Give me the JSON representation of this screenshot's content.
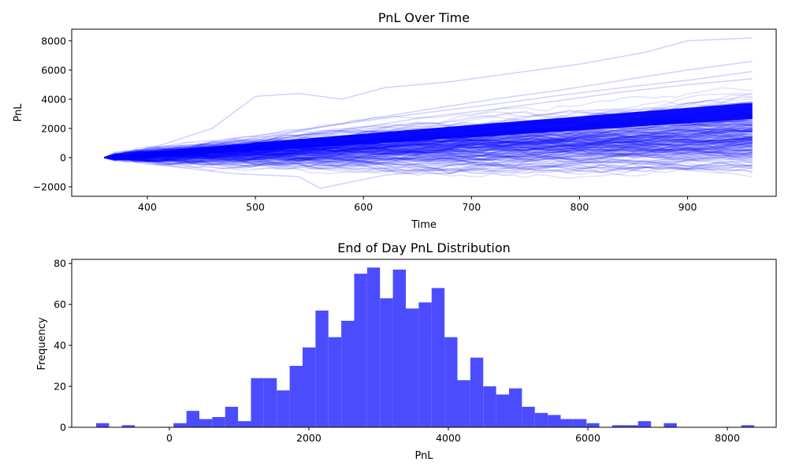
{
  "chart_data": [
    {
      "type": "line",
      "title": "PnL Over Time",
      "xlabel": "Time",
      "ylabel": "PnL",
      "xlim": [
        330,
        982
      ],
      "ylim": [
        -2650,
        8800
      ],
      "x_ticks": [
        400,
        500,
        600,
        700,
        800,
        900
      ],
      "y_ticks": [
        -2000,
        0,
        2000,
        4000,
        6000,
        8000
      ],
      "x_tick_labels": [
        "400",
        "500",
        "600",
        "700",
        "800",
        "900"
      ],
      "y_tick_labels": [
        "−2000",
        "0",
        "2000",
        "4000",
        "6000",
        "8000"
      ],
      "grid": false,
      "color": "#0000ff",
      "line_alpha": 0.12,
      "x_range": [
        360,
        960
      ],
      "series_note_count": 1000,
      "series": [
        {
          "x": [
            360,
            420,
            480,
            540,
            600,
            660,
            720,
            780,
            840,
            900,
            960
          ],
          "values": [
            0,
            250,
            700,
            1100,
            1450,
            1900,
            2250,
            2600,
            3000,
            3400,
            3800
          ]
        },
        {
          "x": [
            360,
            420,
            480,
            540,
            600,
            660,
            720,
            780,
            840,
            900,
            960
          ],
          "values": [
            0,
            550,
            1300,
            1900,
            2500,
            3100,
            3650,
            4250,
            4800,
            5300,
            5900
          ]
        },
        {
          "x": [
            360,
            420,
            480,
            540,
            600,
            660,
            720,
            780,
            840,
            900,
            960
          ],
          "values": [
            0,
            100,
            -200,
            300,
            650,
            950,
            1300,
            1600,
            1800,
            2100,
            2400
          ]
        },
        {
          "x": [
            360,
            410,
            460,
            500,
            540,
            580,
            620,
            680,
            740,
            800,
            860,
            900,
            960
          ],
          "values": [
            0,
            800,
            2000,
            4200,
            4400,
            4000,
            4800,
            5200,
            5800,
            6400,
            7200,
            8000,
            8200
          ]
        },
        {
          "x": [
            360,
            420,
            480,
            540,
            560,
            620,
            680,
            740,
            800,
            860,
            900,
            960
          ],
          "values": [
            0,
            -600,
            -1100,
            -1300,
            -2100,
            -1200,
            -800,
            -200,
            100,
            -300,
            -600,
            -950
          ]
        },
        {
          "x": [
            360,
            420,
            480,
            540,
            600,
            660,
            720,
            780,
            840,
            900,
            960
          ],
          "values": [
            0,
            300,
            900,
            1500,
            2100,
            2800,
            3300,
            3900,
            4500,
            5000,
            5400
          ]
        },
        {
          "x": [
            360,
            420,
            480,
            540,
            600,
            660,
            720,
            780,
            840,
            900,
            960
          ],
          "values": [
            0,
            150,
            350,
            650,
            900,
            1300,
            1700,
            2000,
            2300,
            2600,
            3000
          ]
        },
        {
          "x": [
            360,
            420,
            480,
            540,
            600,
            660,
            720,
            780,
            840,
            900,
            960
          ],
          "values": [
            0,
            400,
            1100,
            1800,
            2600,
            3300,
            4000,
            4600,
            5300,
            6000,
            6600
          ]
        }
      ]
    },
    {
      "type": "bar",
      "title": "End of Day PnL Distribution",
      "xlabel": "PnL",
      "ylabel": "Frequency",
      "xlim": [
        -1400,
        8700
      ],
      "ylim": [
        0,
        82
      ],
      "x_ticks": [
        0,
        2000,
        4000,
        6000,
        8000
      ],
      "y_ticks": [
        0,
        20,
        40,
        60,
        80
      ],
      "x_tick_labels": [
        "0",
        "2000",
        "4000",
        "6000",
        "8000"
      ],
      "y_tick_labels": [
        "0",
        "20",
        "40",
        "60",
        "80"
      ],
      "grid": false,
      "color": "#4c4cff",
      "bin_start": -1050,
      "bin_width": 185,
      "values": [
        2,
        0,
        1,
        0,
        0,
        0,
        2,
        8,
        4,
        5,
        10,
        3,
        24,
        24,
        18,
        30,
        39,
        57,
        44,
        52,
        75,
        78,
        63,
        77,
        58,
        61,
        68,
        44,
        23,
        34,
        20,
        16,
        19,
        10,
        7,
        6,
        4,
        4,
        2,
        0,
        1,
        1,
        3,
        0,
        2,
        0,
        0,
        0,
        0,
        0,
        1
      ]
    }
  ]
}
